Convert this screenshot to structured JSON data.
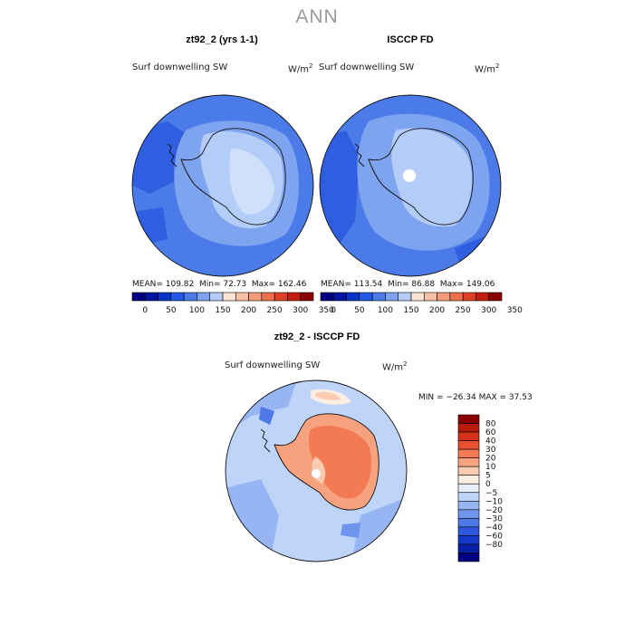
{
  "title": "ANN",
  "panels": [
    {
      "title": "zt92_2 (yrs 1-1)",
      "field": "Surf downwelling SW",
      "units": "W/m",
      "units_sup": "2",
      "stats": {
        "mean": "MEAN= 109.82",
        "min": "Min=  72.73",
        "max": "Max= 162.46"
      }
    },
    {
      "title": "ISCCP FD",
      "field": "Surf downwelling SW",
      "units": "W/m",
      "units_sup": "2",
      "stats": {
        "mean": "MEAN= 113.54",
        "min": "Min=  86.88",
        "max": "Max= 149.06"
      }
    }
  ],
  "colorbar_top": {
    "colors": [
      "#00007f",
      "#00169d",
      "#0b33c4",
      "#2359e6",
      "#4a7be8",
      "#7ea4f0",
      "#b4cdf8",
      "#fae3d2",
      "#f8c0a4",
      "#f49a78",
      "#ec6e4c",
      "#dc4026",
      "#c21e10",
      "#8a0000"
    ],
    "labels": [
      "0",
      "50",
      "100",
      "150",
      "200",
      "250",
      "300",
      "350"
    ]
  },
  "diff_panel": {
    "title": "zt92_2 - ISCCP FD",
    "field": "Surf downwelling SW",
    "units": "W/m",
    "units_sup": "2",
    "minmax": "MIN = −26.34  MAX =  37.53"
  },
  "colorbar_diff": {
    "colors": [
      "#8a0000",
      "#b81a0b",
      "#d63218",
      "#ea5030",
      "#f37a52",
      "#f6a27e",
      "#f9cbb1",
      "#fceee3",
      "#e4eefd",
      "#bed4f8",
      "#96b5f2",
      "#6f95ec",
      "#4d78e6",
      "#2e57dc",
      "#153ac9",
      "#0620a6",
      "#000080"
    ],
    "labels": [
      "80",
      "60",
      "40",
      "30",
      "20",
      "10",
      "5",
      "0",
      "−5",
      "−10",
      "−20",
      "−30",
      "−40",
      "−60",
      "−80"
    ]
  },
  "chart_data": {
    "type": "heatmap",
    "projection": "south polar stereographic",
    "variable": "Surf downwelling SW",
    "units": "W/m^2",
    "season": "ANN",
    "maps": [
      {
        "title": "zt92_2 (yrs 1-1)",
        "mean": 109.82,
        "min": 72.73,
        "max": 162.46
      },
      {
        "title": "ISCCP FD",
        "mean": 113.54,
        "min": 86.88,
        "max": 149.06
      },
      {
        "title": "zt92_2 - ISCCP FD",
        "min": -26.34,
        "max": 37.53
      }
    ],
    "colorbar_levels_abs": [
      0,
      25,
      50,
      75,
      100,
      125,
      150,
      175,
      200,
      225,
      250,
      275,
      300,
      325,
      350
    ],
    "colorbar_levels_diff": [
      -80,
      -60,
      -40,
      -30,
      -20,
      -10,
      -5,
      0,
      5,
      10,
      20,
      30,
      40,
      60,
      80
    ]
  }
}
